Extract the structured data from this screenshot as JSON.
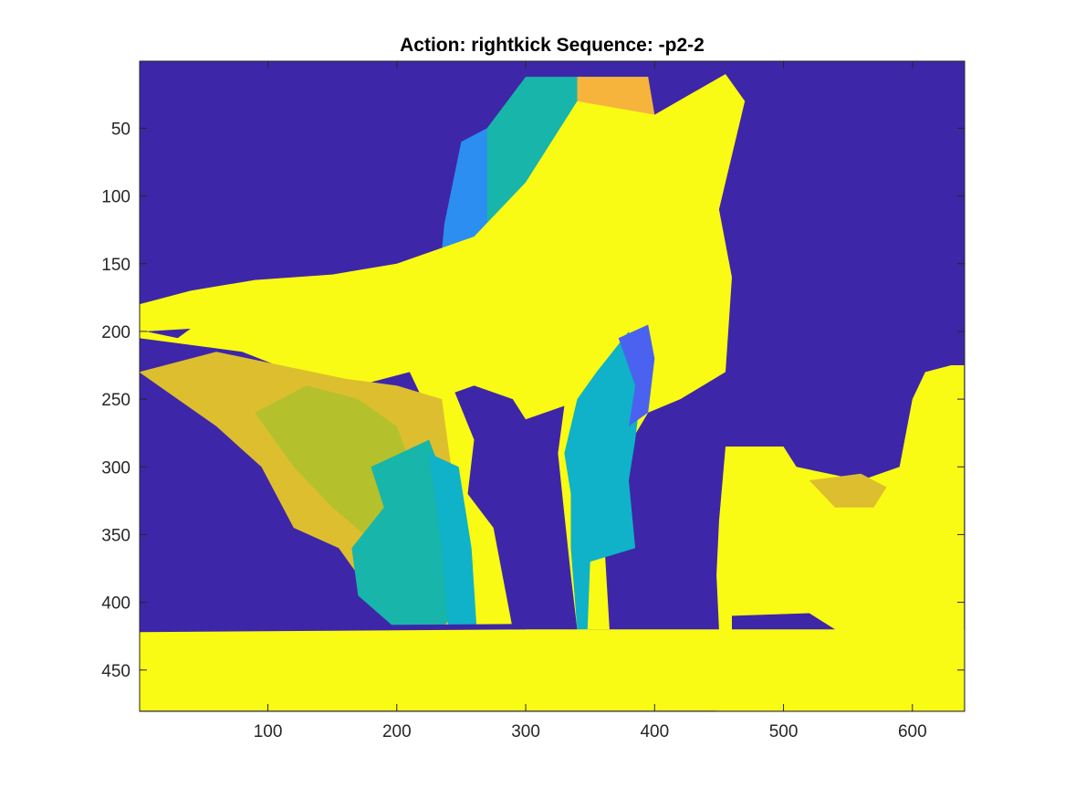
{
  "chart_data": {
    "type": "heatmap",
    "title": "Action: rightkick Sequence: -p2-2",
    "xlabel": "",
    "ylabel": "",
    "xlim": [
      0.5,
      640.5
    ],
    "ylim": [
      0.5,
      480.5
    ],
    "y_reversed": true,
    "x_ticks": [
      100,
      200,
      300,
      400,
      500,
      600
    ],
    "y_ticks": [
      50,
      100,
      150,
      200,
      250,
      300,
      350,
      400,
      450
    ],
    "x_tick_labels": [
      "100",
      "200",
      "300",
      "400",
      "500",
      "600"
    ],
    "y_tick_labels": [
      "50",
      "100",
      "150",
      "200",
      "250",
      "300",
      "350",
      "400",
      "450"
    ],
    "colormap": "parula",
    "colors": {
      "background": "#3e26a8",
      "foreground": "#f9fb14",
      "orange": "#f6b43c",
      "amber": "#ddbe2f",
      "olive": "#b4c12c",
      "green": "#7dba4d",
      "teal_green": "#3fbc8c",
      "teal": "#18b5ab",
      "cyan": "#0fb2c8",
      "blue": "#2b8ef0",
      "light_blue": "#3a7df7",
      "indigo": "#4a62ef"
    },
    "regions": [
      {
        "name": "upper-wall-depth",
        "color": "teal",
        "points": [
          [
            270,
            50
          ],
          [
            300,
            12
          ],
          [
            395,
            12
          ],
          [
            395,
            110
          ],
          [
            320,
            120
          ],
          [
            260,
            160
          ],
          [
            233,
            160
          ],
          [
            237,
            120
          ]
        ]
      },
      {
        "name": "upper-wall-near-edge",
        "color": "orange",
        "points": [
          [
            340,
            12
          ],
          [
            395,
            12
          ],
          [
            400,
            40
          ],
          [
            385,
            55
          ],
          [
            340,
            30
          ]
        ]
      },
      {
        "name": "upper-wall-left-edge",
        "color": "blue",
        "points": [
          [
            237,
            120
          ],
          [
            250,
            60
          ],
          [
            270,
            50
          ],
          [
            270,
            150
          ],
          [
            233,
            160
          ]
        ]
      },
      {
        "name": "person-silhouette",
        "color": "foreground",
        "points": [
          [
            455,
            10
          ],
          [
            470,
            30
          ],
          [
            460,
            70
          ],
          [
            450,
            110
          ],
          [
            460,
            160
          ],
          [
            455,
            230
          ],
          [
            420,
            250
          ],
          [
            395,
            260
          ],
          [
            370,
            300
          ],
          [
            360,
            340
          ],
          [
            365,
            420
          ],
          [
            340,
            420
          ],
          [
            335,
            380
          ],
          [
            330,
            335
          ],
          [
            325,
            290
          ],
          [
            330,
            255
          ],
          [
            300,
            265
          ],
          [
            290,
            250
          ],
          [
            260,
            240
          ],
          [
            245,
            245
          ],
          [
            260,
            280
          ],
          [
            255,
            320
          ],
          [
            275,
            345
          ],
          [
            290,
            420
          ],
          [
            260,
            420
          ],
          [
            250,
            330
          ],
          [
            230,
            270
          ],
          [
            210,
            230
          ],
          [
            170,
            240
          ],
          [
            120,
            230
          ],
          [
            80,
            215
          ],
          [
            0,
            205
          ],
          [
            0,
            180
          ],
          [
            40,
            170
          ],
          [
            90,
            162
          ],
          [
            150,
            158
          ],
          [
            200,
            150
          ],
          [
            260,
            130
          ],
          [
            300,
            90
          ],
          [
            340,
            30
          ],
          [
            400,
            40
          ]
        ]
      },
      {
        "name": "left-wall-gradient",
        "color": "amber",
        "points": [
          [
            0,
            230
          ],
          [
            60,
            215
          ],
          [
            110,
            225
          ],
          [
            160,
            235
          ],
          [
            200,
            240
          ],
          [
            235,
            250
          ],
          [
            245,
            320
          ],
          [
            258,
            420
          ],
          [
            220,
            420
          ],
          [
            190,
            395
          ],
          [
            170,
            380
          ],
          [
            155,
            360
          ],
          [
            120,
            345
          ],
          [
            95,
            300
          ],
          [
            60,
            270
          ],
          [
            30,
            250
          ]
        ]
      },
      {
        "name": "left-wall-mid",
        "color": "olive",
        "points": [
          [
            90,
            260
          ],
          [
            130,
            240
          ],
          [
            170,
            250
          ],
          [
            200,
            270
          ],
          [
            215,
            310
          ],
          [
            205,
            340
          ],
          [
            175,
            350
          ],
          [
            150,
            330
          ],
          [
            120,
            300
          ]
        ]
      },
      {
        "name": "left-wall-far",
        "color": "teal",
        "points": [
          [
            180,
            300
          ],
          [
            225,
            280
          ],
          [
            245,
            330
          ],
          [
            250,
            400
          ],
          [
            235,
            420
          ],
          [
            200,
            420
          ],
          [
            170,
            395
          ],
          [
            165,
            360
          ],
          [
            190,
            330
          ]
        ]
      },
      {
        "name": "left-wall-furthest",
        "color": "cyan",
        "points": [
          [
            225,
            290
          ],
          [
            248,
            300
          ],
          [
            258,
            360
          ],
          [
            262,
            420
          ],
          [
            240,
            420
          ],
          [
            235,
            360
          ]
        ]
      },
      {
        "name": "right-leg-wall",
        "color": "cyan",
        "points": [
          [
            330,
            290
          ],
          [
            340,
            250
          ],
          [
            355,
            230
          ],
          [
            380,
            200
          ],
          [
            390,
            240
          ],
          [
            385,
            280
          ],
          [
            380,
            310
          ],
          [
            385,
            360
          ],
          [
            350,
            370
          ],
          [
            348,
            420
          ],
          [
            340,
            420
          ],
          [
            335,
            360
          ],
          [
            335,
            320
          ]
        ]
      },
      {
        "name": "right-leg-wall-edge",
        "color": "indigo",
        "points": [
          [
            372,
            205
          ],
          [
            395,
            195
          ],
          [
            400,
            220
          ],
          [
            395,
            260
          ],
          [
            380,
            270
          ],
          [
            385,
            240
          ]
        ]
      },
      {
        "name": "right-object",
        "color": "foreground",
        "points": [
          [
            455,
            285
          ],
          [
            500,
            285
          ],
          [
            510,
            300
          ],
          [
            560,
            310
          ],
          [
            590,
            300
          ],
          [
            600,
            250
          ],
          [
            610,
            230
          ],
          [
            630,
            225
          ],
          [
            640,
            225
          ],
          [
            640,
            480
          ],
          [
            448,
            480
          ],
          [
            450,
            420
          ],
          [
            448,
            380
          ],
          [
            450,
            340
          ]
        ]
      },
      {
        "name": "right-object-top-detail",
        "color": "amber",
        "points": [
          [
            520,
            310
          ],
          [
            560,
            305
          ],
          [
            580,
            315
          ],
          [
            570,
            330
          ],
          [
            540,
            330
          ]
        ]
      },
      {
        "name": "floor",
        "color": "foreground",
        "points": [
          [
            0,
            420
          ],
          [
            640,
            420
          ],
          [
            640,
            480
          ],
          [
            0,
            480
          ]
        ]
      }
    ],
    "holes": [
      {
        "name": "left-hole-1",
        "points": [
          [
            5,
            200
          ],
          [
            40,
            198
          ],
          [
            30,
            205
          ]
        ]
      },
      {
        "name": "floor-edge",
        "points": [
          [
            0,
            418
          ],
          [
            300,
            416
          ],
          [
            300,
            420
          ],
          [
            0,
            422
          ]
        ]
      },
      {
        "name": "right-gap",
        "points": [
          [
            460,
            410
          ],
          [
            520,
            408
          ],
          [
            540,
            420
          ],
          [
            460,
            420
          ]
        ]
      }
    ]
  }
}
